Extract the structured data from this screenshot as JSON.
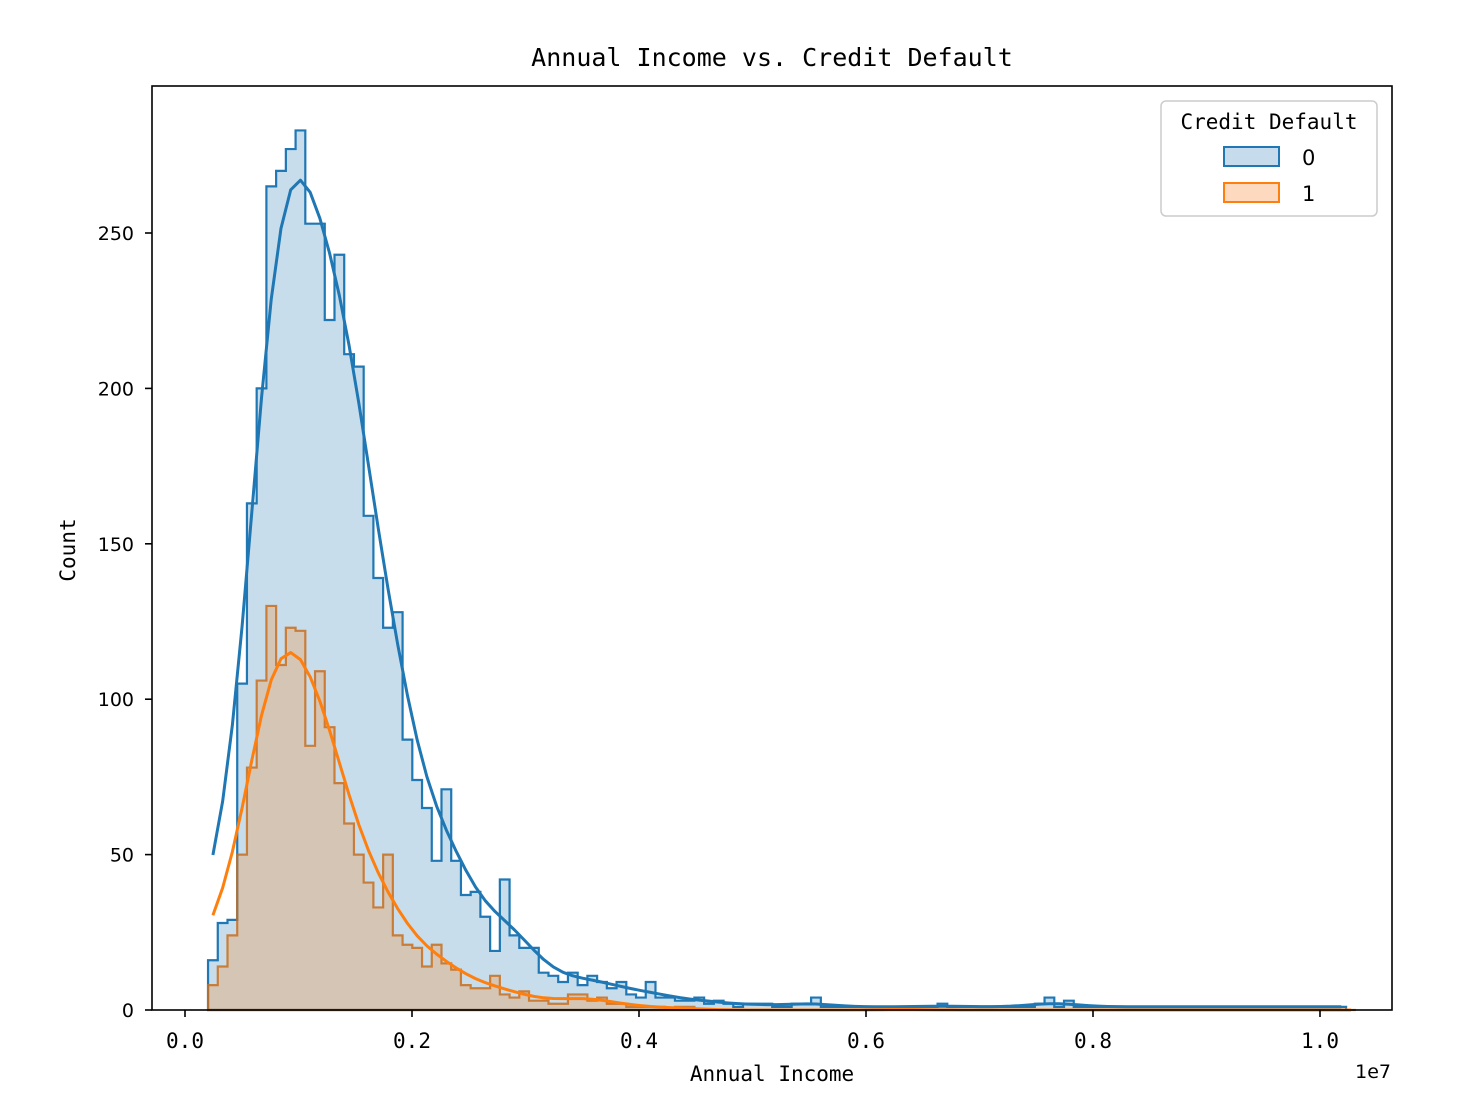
{
  "chart_data": {
    "type": "histogram",
    "title": "Annual Income vs. Credit Default",
    "xlabel": "Annual Income",
    "ylabel": "Count",
    "x_offset_label": "1e7",
    "xlim": [
      -0.03,
      1.06
    ],
    "ylim": [
      0,
      297
    ],
    "xticks": [
      0.0,
      0.2,
      0.4,
      0.6,
      0.8,
      1.0
    ],
    "xtick_labels": [
      "0.0",
      "0.2",
      "0.4",
      "0.6",
      "0.8",
      "1.0"
    ],
    "yticks": [
      0,
      50,
      100,
      150,
      200,
      250
    ],
    "ytick_labels": [
      "0",
      "50",
      "100",
      "150",
      "200",
      "250"
    ],
    "grid": false,
    "legend": {
      "title": "Credit Default",
      "position": "upper right",
      "entries": [
        {
          "label": "0",
          "color": "#1f77b4",
          "fill": "#c6dbec"
        },
        {
          "label": "1",
          "color": "#ff7f0e",
          "fill": "#fdd9bf"
        }
      ]
    },
    "bin_start": 0.0203,
    "bin_width": 0.00857,
    "series": [
      {
        "name": "0",
        "color": "#1f77b4",
        "element": "step",
        "kde": true,
        "counts": [
          16,
          28,
          29,
          105,
          163,
          200,
          265,
          270,
          277,
          283,
          253,
          253,
          222,
          243,
          211,
          207,
          159,
          139,
          123,
          128,
          87,
          74,
          65,
          48,
          71,
          48,
          37,
          38,
          30,
          19,
          42,
          24,
          20,
          20,
          12,
          11,
          9,
          12,
          8,
          11,
          9,
          7,
          9,
          5,
          4,
          9,
          4,
          4,
          3,
          3,
          4,
          2,
          3,
          2,
          1,
          2,
          2,
          2,
          1,
          1,
          2,
          2,
          4,
          1,
          1,
          1,
          1,
          1,
          1,
          1,
          1,
          1,
          1,
          1,
          1,
          2,
          1,
          1,
          1,
          1,
          1,
          1,
          1,
          1,
          1,
          2,
          4,
          1,
          3,
          1,
          1,
          1,
          1,
          1,
          1,
          1,
          1,
          1,
          1,
          1,
          1,
          1,
          1,
          1,
          1,
          1,
          1,
          1,
          1,
          1,
          1,
          1,
          1,
          1,
          1,
          1,
          1
        ],
        "kde_peak": {
          "x": 0.095,
          "y": 267
        }
      },
      {
        "name": "1",
        "color": "#ff7f0e",
        "element": "step",
        "kde": true,
        "counts": [
          8,
          14,
          24,
          50,
          78,
          106,
          130,
          111,
          123,
          122,
          85,
          109,
          91,
          73,
          60,
          50,
          41,
          33,
          50,
          24,
          21,
          20,
          14,
          21,
          15,
          13,
          8,
          7,
          7,
          11,
          5,
          4,
          6,
          3,
          3,
          2,
          2,
          5,
          5,
          3,
          4,
          2,
          2,
          1,
          1,
          1,
          1,
          0,
          1,
          1,
          0,
          0,
          0,
          0,
          0,
          0,
          0,
          0,
          0,
          0,
          0,
          0,
          0,
          0,
          0,
          0,
          0,
          0,
          0,
          0,
          0,
          1,
          0,
          0,
          0,
          0,
          0,
          0,
          0,
          0,
          0,
          0,
          0,
          0,
          0,
          0,
          0,
          0,
          0,
          0,
          0,
          0,
          0,
          0,
          0,
          0,
          0,
          0,
          0,
          0,
          0,
          0,
          0,
          0,
          0,
          0,
          0,
          0,
          0,
          0,
          0,
          0,
          0,
          0,
          0,
          0,
          0,
          0
        ],
        "kde_peak": {
          "x": 0.087,
          "y": 115
        }
      }
    ]
  }
}
